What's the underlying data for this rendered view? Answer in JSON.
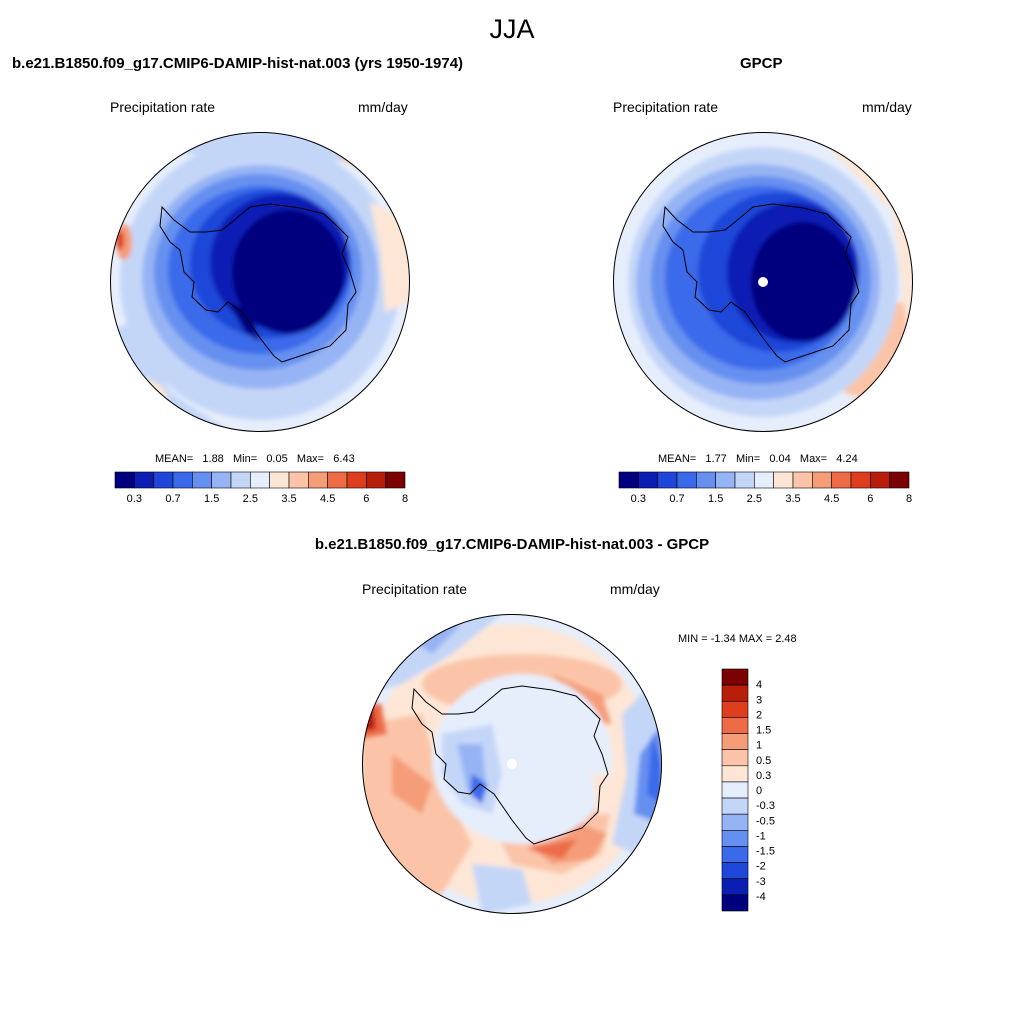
{
  "page": {
    "title": "JJA"
  },
  "colors": {
    "div": [
      "#00007e",
      "#0a1eb4",
      "#1e46d8",
      "#3a6aea",
      "#6690f0",
      "#96b4f4",
      "#c4d6f8",
      "#e6eefc",
      "#fde6d6",
      "#fbc4a8",
      "#f59c78",
      "#ed6c46",
      "#de3e1e",
      "#b81e0a",
      "#7a0202"
    ],
    "coast": "#000000"
  },
  "panels": {
    "model": {
      "title": "b.e21.B1850.f09_g17.CMIP6-DAMIP-hist-nat.003 (yrs 1950-1974)",
      "left_label": "Precipitation rate",
      "right_label": "mm/day",
      "stats": {
        "mean_label": "MEAN=",
        "mean": "1.88",
        "min_label": "Min=",
        "min": "0.05",
        "max_label": "Max=",
        "max": "6.43"
      }
    },
    "obs": {
      "title": "GPCP",
      "left_label": "Precipitation rate",
      "right_label": "mm/day",
      "stats": {
        "mean_label": "MEAN=",
        "mean": "1.77",
        "min_label": "Min=",
        "min": "0.04",
        "max_label": "Max=",
        "max": "4.24"
      }
    },
    "diff": {
      "title": "b.e21.B1850.f09_g17.CMIP6-DAMIP-hist-nat.003 - GPCP",
      "left_label": "Precipitation rate",
      "right_label": "mm/day",
      "minmax": "MIN =  -1.34 MAX =   2.48"
    }
  },
  "colorbar_abs": {
    "labels": [
      "0.3",
      "0.7",
      "1.5",
      "2.5",
      "3.5",
      "4.5",
      "6",
      "8"
    ]
  },
  "colorbar_diff": {
    "labels": [
      "4",
      "3",
      "2",
      "1.5",
      "1",
      "0.5",
      "0.3",
      "0",
      "-0.3",
      "-0.5",
      "-1",
      "-1.5",
      "-2",
      "-3",
      "-4"
    ]
  }
}
